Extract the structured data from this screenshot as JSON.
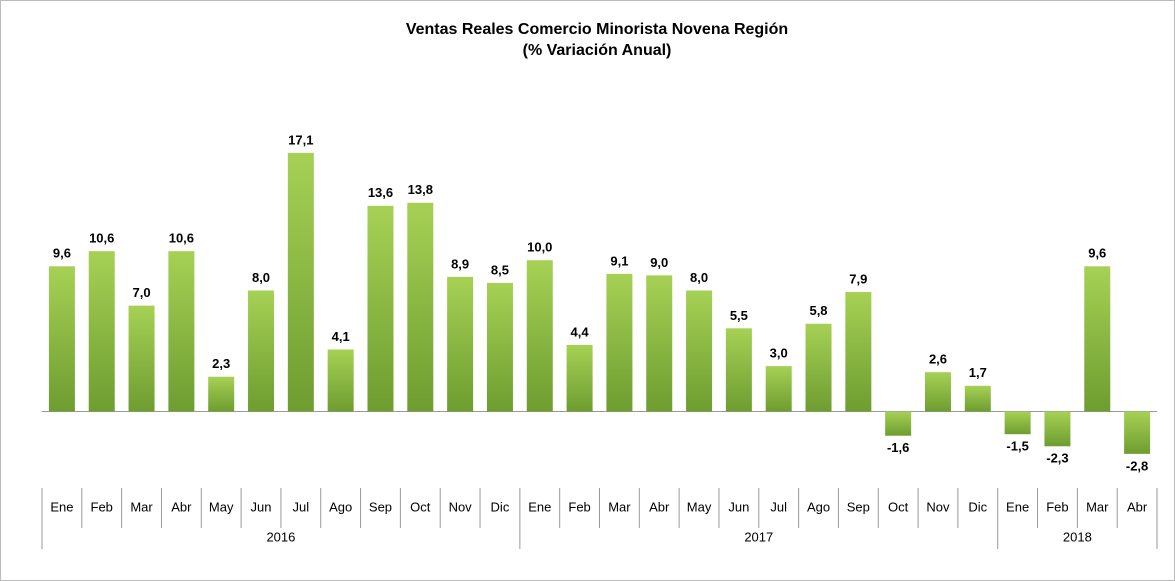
{
  "chart_data": {
    "type": "bar",
    "title": "Ventas Reales Comercio Minorista Novena Región",
    "subtitle": "(% Variación Anual)",
    "groups": [
      {
        "name": "2016",
        "categories": [
          "Ene",
          "Feb",
          "Mar",
          "Abr",
          "May",
          "Jun",
          "Jul",
          "Ago",
          "Sep",
          "Oct",
          "Nov",
          "Dic"
        ]
      },
      {
        "name": "2017",
        "categories": [
          "Ene",
          "Feb",
          "Mar",
          "Abr",
          "May",
          "Jun",
          "Jul",
          "Ago",
          "Sep",
          "Oct",
          "Nov",
          "Dic"
        ]
      },
      {
        "name": "2018",
        "categories": [
          "Ene",
          "Feb",
          "Mar",
          "Abr"
        ]
      }
    ],
    "values": [
      9.6,
      10.6,
      7.0,
      10.6,
      2.3,
      8.0,
      17.1,
      4.1,
      13.6,
      13.8,
      8.9,
      8.5,
      10.0,
      4.4,
      9.1,
      9.0,
      8.0,
      5.5,
      3.0,
      5.8,
      7.9,
      -1.6,
      2.6,
      1.7,
      -1.5,
      -2.3,
      9.6,
      -2.8
    ],
    "value_labels": [
      "9,6",
      "10,6",
      "7,0",
      "10,6",
      "2,3",
      "8,0",
      "17,1",
      "4,1",
      "13,6",
      "13,8",
      "8,9",
      "8,5",
      "10,0",
      "4,4",
      "9,1",
      "9,0",
      "8,0",
      "5,5",
      "3,0",
      "5,8",
      "7,9",
      "-1,6",
      "2,6",
      "1,7",
      "-1,5",
      "-2,3",
      "9,6",
      "-2,8"
    ],
    "color": "#8cbf3f",
    "ylim": [
      -4,
      20
    ]
  }
}
